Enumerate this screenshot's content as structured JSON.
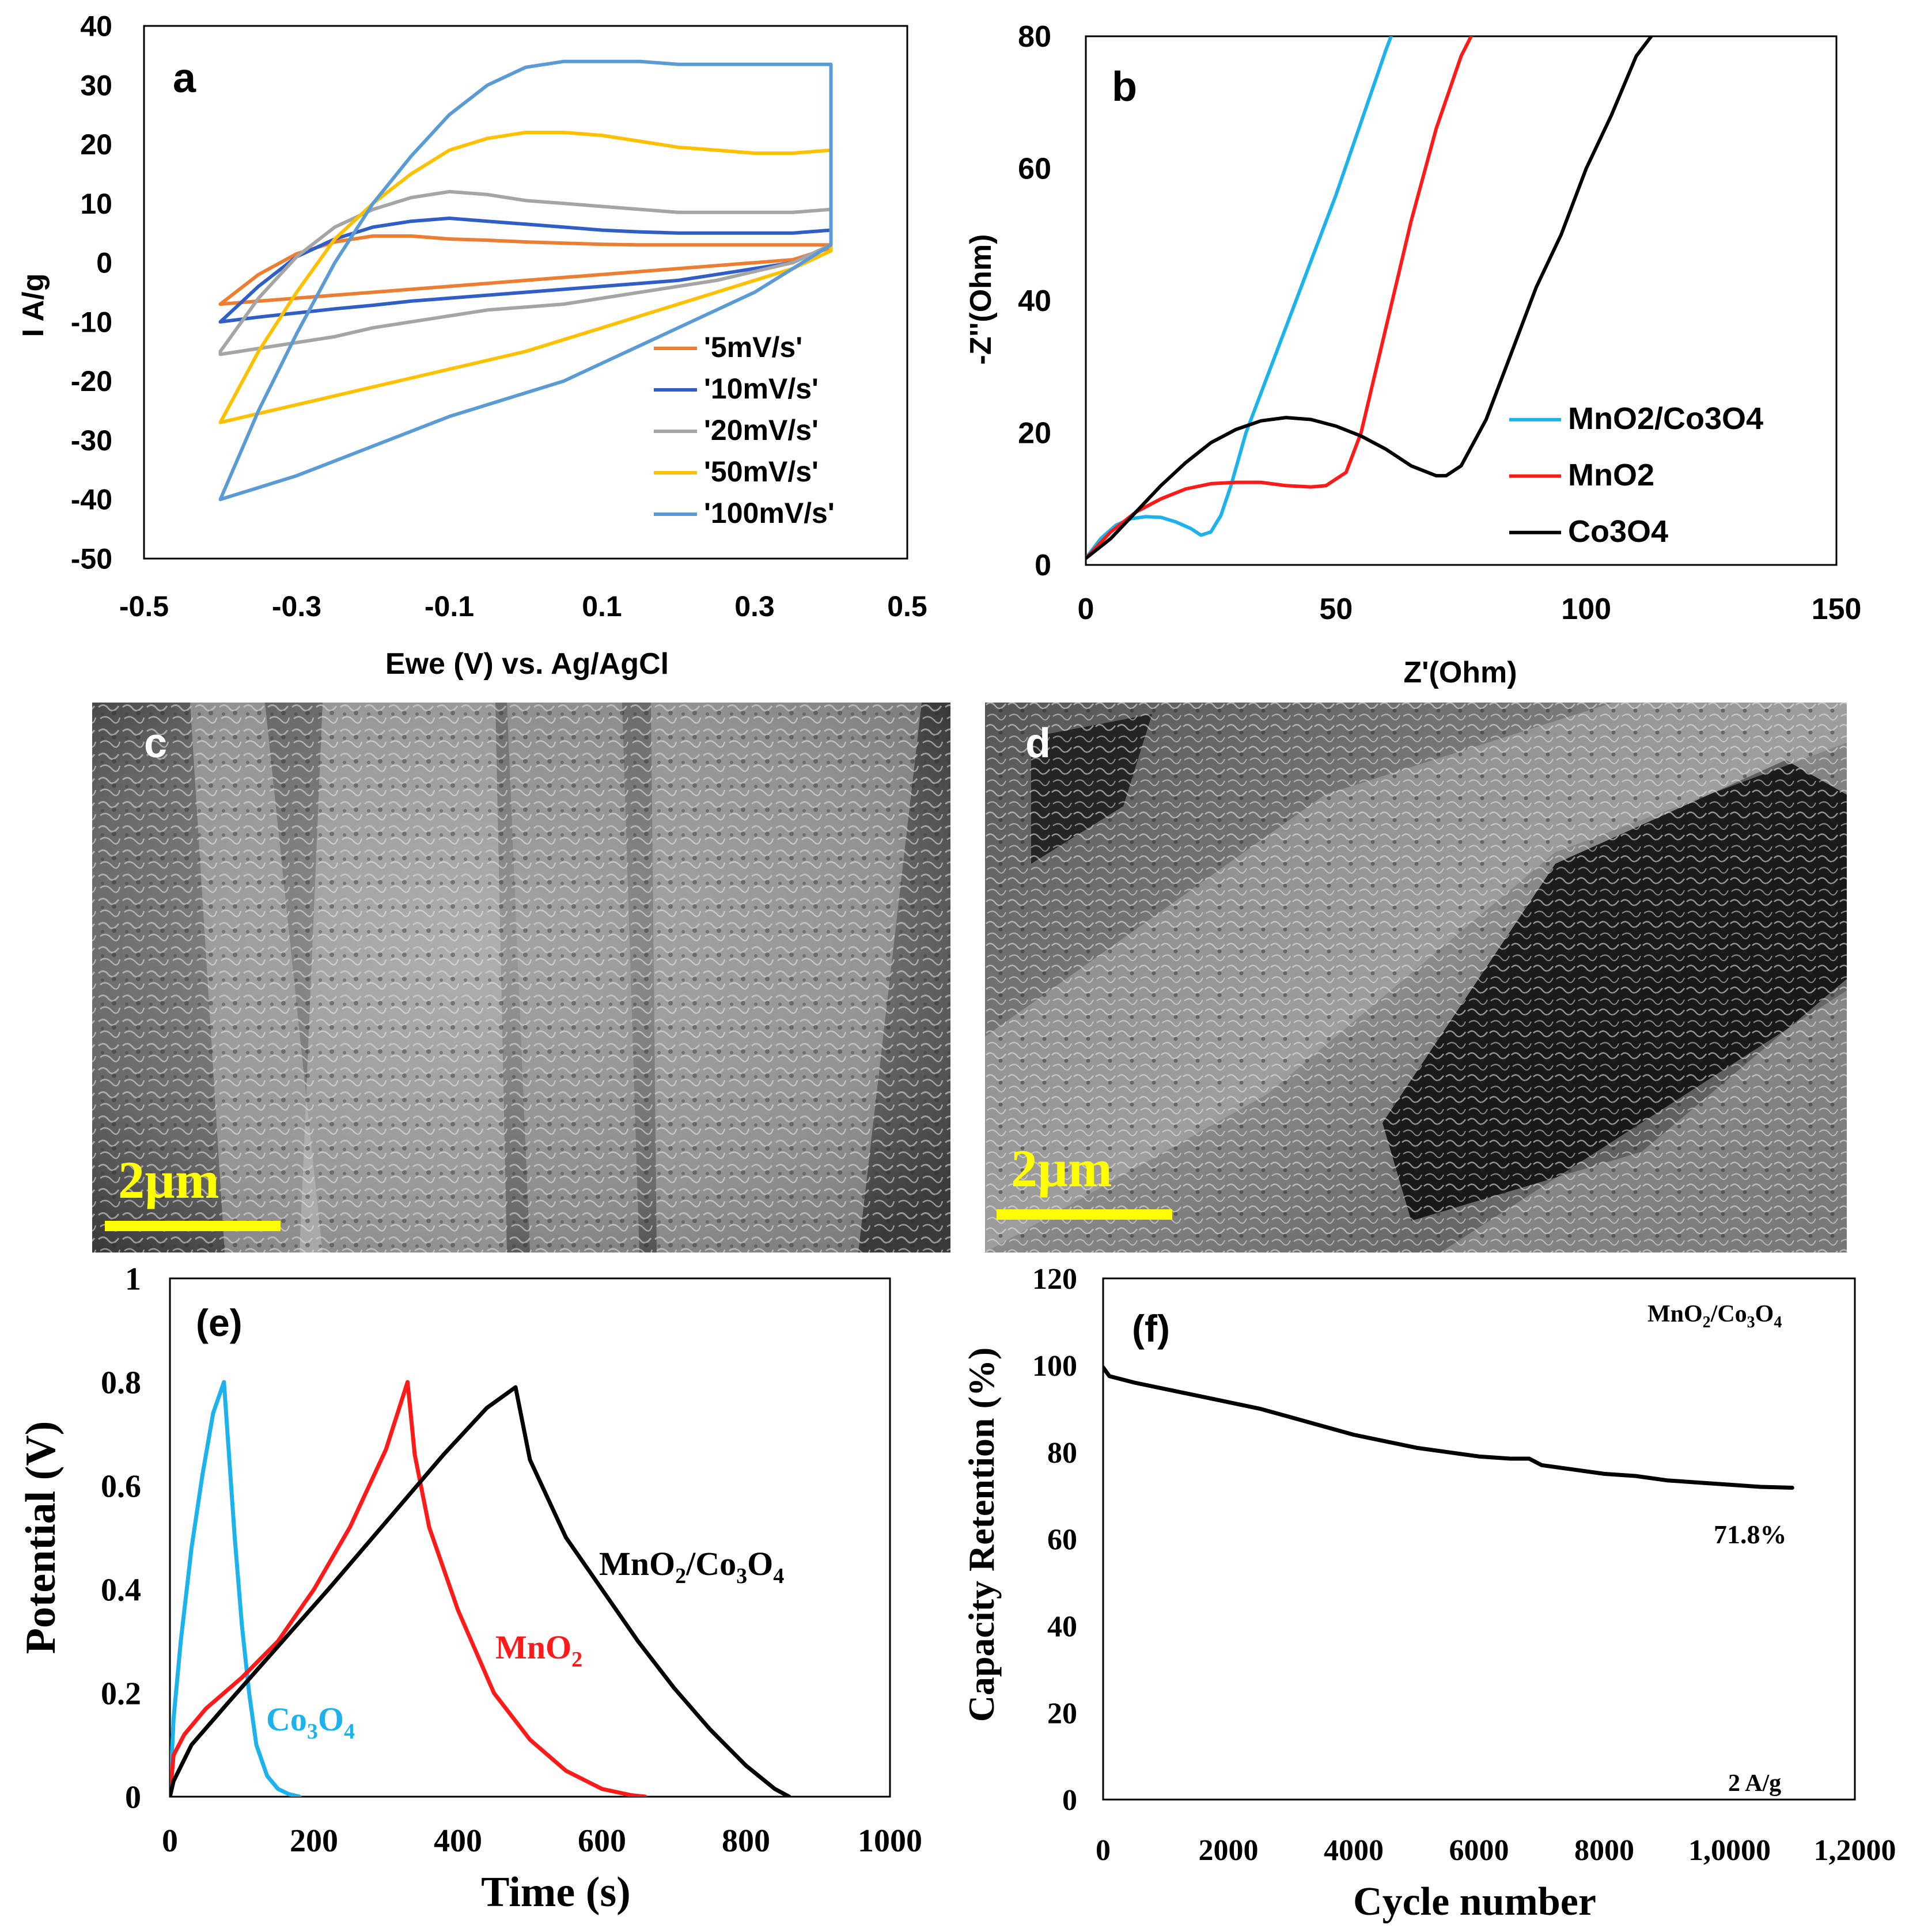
{
  "panel_labels": {
    "a": "a",
    "b": "b",
    "c": "c",
    "d": "d",
    "e": "(e)",
    "f": "(f)"
  },
  "sem": {
    "c": {
      "scale_label": "2µm"
    },
    "d": {
      "scale_label": "2µm"
    }
  },
  "colors": {
    "orange": "#ed7d31",
    "darkblue": "#2f5fc6",
    "gray": "#a5a5a5",
    "gold": "#ffc000",
    "lightblue": "#5b9bd5",
    "cyan": "#1cb2ec",
    "red": "#ff1a1a",
    "black": "#000000",
    "scale_yellow": "#ffff00"
  },
  "chart_data": [
    {
      "id": "a",
      "type": "line",
      "title": "",
      "xlabel": "Ewe (V) vs. Ag/AgCl",
      "ylabel": "I  A/g",
      "xlim": [
        -0.5,
        0.5
      ],
      "ylim": [
        -50,
        40
      ],
      "xticks": [
        -0.5,
        -0.3,
        -0.1,
        0.1,
        0.3,
        0.5
      ],
      "xtick_labels": [
        "-0.5",
        "-0.3",
        "-0.1",
        "0.1",
        "0.3",
        "0.5"
      ],
      "yticks": [
        40,
        30,
        20,
        10,
        0,
        -10,
        -20,
        -30,
        -40,
        -50
      ],
      "ytick_labels": [
        "40",
        "30",
        "20",
        "10",
        "0",
        "-10",
        "-20",
        "-30",
        "-40",
        "-50"
      ],
      "legend_position": "lower-right",
      "series": [
        {
          "name": "'5mV/s'",
          "color": "orange",
          "x": [
            -0.4,
            -0.35,
            -0.3,
            -0.25,
            -0.2,
            -0.15,
            -0.1,
            -0.05,
            0,
            0.05,
            0.1,
            0.15,
            0.2,
            0.25,
            0.3,
            0.35,
            0.4,
            0.4,
            0.35,
            0.3,
            0.25,
            0.2,
            0.15,
            0.1,
            0.05,
            0,
            -0.05,
            -0.1,
            -0.15,
            -0.2,
            -0.25,
            -0.3,
            -0.35,
            -0.4,
            -0.4
          ],
          "y": [
            -7,
            -2,
            1.5,
            3.5,
            4.5,
            4.5,
            4,
            3.8,
            3.5,
            3.3,
            3.1,
            3,
            3,
            3,
            3,
            3,
            3,
            2.5,
            0.5,
            0,
            -0.5,
            -1,
            -1.5,
            -2,
            -2.5,
            -3,
            -3.5,
            -4,
            -4.5,
            -5,
            -5.5,
            -6,
            -6.5,
            -7,
            -7
          ]
        },
        {
          "name": "'10mV/s'",
          "color": "darkblue",
          "x": [
            -0.4,
            -0.35,
            -0.3,
            -0.25,
            -0.2,
            -0.15,
            -0.1,
            -0.05,
            0,
            0.05,
            0.1,
            0.15,
            0.2,
            0.25,
            0.3,
            0.35,
            0.4,
            0.4,
            0.35,
            0.3,
            0.25,
            0.2,
            0.15,
            0.1,
            0.05,
            0,
            -0.05,
            -0.1,
            -0.15,
            -0.2,
            -0.25,
            -0.3,
            -0.35,
            -0.4,
            -0.4
          ],
          "y": [
            -10,
            -4,
            1,
            4,
            6,
            7,
            7.5,
            7,
            6.5,
            6,
            5.5,
            5.2,
            5,
            5,
            5,
            5,
            5.5,
            3,
            0,
            -1,
            -2,
            -3,
            -3.5,
            -4,
            -4.5,
            -5,
            -5.5,
            -6,
            -6.5,
            -7.2,
            -7.8,
            -8.5,
            -9.2,
            -10,
            -10
          ]
        },
        {
          "name": "'20mV/s'",
          "color": "gray",
          "x": [
            -0.4,
            -0.35,
            -0.3,
            -0.25,
            -0.2,
            -0.15,
            -0.1,
            -0.05,
            0,
            0.05,
            0.1,
            0.15,
            0.2,
            0.25,
            0.3,
            0.35,
            0.4,
            0.4,
            0.35,
            0.3,
            0.25,
            0.2,
            0.15,
            0.1,
            0.05,
            0,
            -0.05,
            -0.1,
            -0.15,
            -0.2,
            -0.25,
            -0.3,
            -0.35,
            -0.4,
            -0.4
          ],
          "y": [
            -15,
            -6,
            1,
            6,
            9,
            11,
            12,
            11.5,
            10.5,
            10,
            9.5,
            9,
            8.5,
            8.5,
            8.5,
            8.5,
            9,
            3,
            0,
            -1.5,
            -3,
            -4,
            -5,
            -6,
            -7,
            -7.5,
            -8,
            -9,
            -10,
            -11,
            -12.5,
            -13.5,
            -14.5,
            -15.5,
            -15
          ]
        },
        {
          "name": "'50mV/s'",
          "color": "gold",
          "x": [
            -0.4,
            -0.35,
            -0.3,
            -0.25,
            -0.2,
            -0.15,
            -0.1,
            -0.05,
            0,
            0.05,
            0.1,
            0.15,
            0.2,
            0.25,
            0.3,
            0.35,
            0.4,
            0.4,
            0.35,
            0.3,
            0.25,
            0.2,
            0.15,
            0.1,
            0.05,
            0,
            -0.05,
            -0.1,
            -0.15,
            -0.2,
            -0.25,
            -0.3,
            -0.35,
            -0.4,
            -0.4
          ],
          "y": [
            -27,
            -15,
            -5,
            4,
            10,
            15,
            19,
            21,
            22,
            22,
            21.5,
            20.5,
            19.5,
            19,
            18.5,
            18.5,
            19,
            2,
            -1,
            -3,
            -5,
            -7,
            -9,
            -11,
            -13,
            -15,
            -16.5,
            -18,
            -19.5,
            -21,
            -22.5,
            -24,
            -25.5,
            -27,
            -27
          ]
        },
        {
          "name": "'100mV/s'",
          "color": "lightblue",
          "x": [
            -0.4,
            -0.35,
            -0.3,
            -0.25,
            -0.2,
            -0.15,
            -0.1,
            -0.05,
            0,
            0.05,
            0.1,
            0.15,
            0.2,
            0.25,
            0.3,
            0.35,
            0.4,
            0.4,
            0.35,
            0.3,
            0.25,
            0.2,
            0.15,
            0.1,
            0.05,
            0,
            -0.05,
            -0.1,
            -0.15,
            -0.2,
            -0.25,
            -0.3,
            -0.35,
            -0.4,
            -0.4
          ],
          "y": [
            -40,
            -25,
            -12,
            0,
            10,
            18,
            25,
            30,
            33,
            34,
            34,
            34,
            33.5,
            33.5,
            33.5,
            33.5,
            33.5,
            3,
            -1,
            -5,
            -8,
            -11,
            -14,
            -17,
            -20,
            -22,
            -24,
            -26,
            -28.5,
            -31,
            -33.5,
            -36,
            -38,
            -40,
            -40
          ]
        }
      ]
    },
    {
      "id": "b",
      "type": "line",
      "title": "",
      "xlabel": "Z'(Ohm)",
      "ylabel": "-Z''(Ohm)",
      "xlim": [
        0,
        150
      ],
      "ylim": [
        0,
        80
      ],
      "xticks": [
        0,
        50,
        100,
        150
      ],
      "xtick_labels": [
        "0",
        "50",
        "100",
        "150"
      ],
      "yticks": [
        0,
        20,
        40,
        60,
        80
      ],
      "ytick_labels": [
        "0",
        "20",
        "40",
        "60",
        "80"
      ],
      "legend_position": "lower-right",
      "series": [
        {
          "name": "MnO2/Co3O4",
          "color": "cyan",
          "x": [
            0,
            3,
            6,
            9,
            12,
            15,
            18,
            21,
            23,
            25,
            27,
            29,
            32,
            36,
            40,
            45,
            50,
            55,
            60,
            61
          ],
          "y": [
            1,
            4,
            6,
            7,
            7.3,
            7.2,
            6.5,
            5.5,
            4.5,
            5,
            7.5,
            12,
            20,
            28,
            36,
            46,
            56,
            67,
            78,
            80
          ]
        },
        {
          "name": "MnO2",
          "color": "red",
          "x": [
            0,
            5,
            10,
            15,
            20,
            25,
            30,
            35,
            40,
            45,
            48,
            52,
            55,
            60,
            65,
            70,
            75,
            77
          ],
          "y": [
            1,
            5,
            8,
            10,
            11.5,
            12.3,
            12.5,
            12.5,
            12,
            11.8,
            12,
            14,
            20,
            36,
            52,
            66,
            77,
            80
          ]
        },
        {
          "name": "Co3O4",
          "color": "black",
          "x": [
            0,
            5,
            10,
            15,
            20,
            25,
            30,
            35,
            40,
            45,
            50,
            55,
            60,
            65,
            70,
            72,
            75,
            80,
            85,
            90,
            95,
            100,
            105,
            110,
            113
          ],
          "y": [
            1,
            4,
            8,
            12,
            15.5,
            18.5,
            20.5,
            21.8,
            22.3,
            22,
            21,
            19.5,
            17.5,
            15,
            13.5,
            13.5,
            15,
            22,
            32,
            42,
            50,
            60,
            68,
            77,
            80
          ]
        }
      ]
    },
    {
      "id": "e",
      "type": "line",
      "title": "",
      "xlabel": "Time (s)",
      "ylabel": "Potential (V)",
      "xlim": [
        0,
        1000
      ],
      "ylim": [
        0,
        1
      ],
      "xticks": [
        0,
        200,
        400,
        600,
        800,
        1000
      ],
      "xtick_labels": [
        "0",
        "200",
        "400",
        "600",
        "800",
        "1000"
      ],
      "yticks": [
        0,
        0.2,
        0.4,
        0.6,
        0.8,
        1
      ],
      "ytick_labels": [
        "0",
        "0.2",
        "0.4",
        "0.6",
        "0.8",
        "1"
      ],
      "annotations": [
        "MnO2/Co3O4",
        "MnO2",
        "Co3O4"
      ],
      "series": [
        {
          "name": "Co3O4",
          "color": "cyan",
          "x": [
            0,
            5,
            15,
            30,
            45,
            60,
            75,
            80,
            90,
            100,
            110,
            120,
            135,
            150,
            165,
            180
          ],
          "y": [
            0,
            0.15,
            0.3,
            0.48,
            0.62,
            0.74,
            0.8,
            0.7,
            0.5,
            0.33,
            0.2,
            0.1,
            0.04,
            0.015,
            0.005,
            0
          ]
        },
        {
          "name": "MnO2",
          "color": "red",
          "x": [
            0,
            5,
            20,
            50,
            100,
            150,
            200,
            250,
            300,
            330,
            340,
            360,
            400,
            450,
            500,
            550,
            600,
            640,
            660
          ],
          "y": [
            0,
            0.08,
            0.12,
            0.17,
            0.23,
            0.3,
            0.4,
            0.52,
            0.67,
            0.8,
            0.66,
            0.52,
            0.36,
            0.2,
            0.11,
            0.05,
            0.015,
            0.003,
            0
          ]
        },
        {
          "name": "MnO2/Co3O4",
          "color": "black",
          "x": [
            0,
            5,
            30,
            80,
            150,
            220,
            300,
            380,
            440,
            480,
            500,
            550,
            600,
            650,
            700,
            750,
            800,
            840,
            860
          ],
          "y": [
            0,
            0.03,
            0.1,
            0.18,
            0.29,
            0.4,
            0.53,
            0.66,
            0.75,
            0.79,
            0.65,
            0.5,
            0.4,
            0.3,
            0.21,
            0.13,
            0.06,
            0.015,
            0
          ]
        }
      ]
    },
    {
      "id": "f",
      "type": "line",
      "title": "",
      "xlabel": "Cycle number",
      "ylabel": "Capacity Retention (%)",
      "xlim": [
        0,
        12000
      ],
      "ylim": [
        0,
        120
      ],
      "xticks": [
        0,
        2000,
        4000,
        6000,
        8000,
        10000,
        12000
      ],
      "xtick_labels": [
        "0",
        "2000",
        "4000",
        "6000",
        "8000",
        "1,0000",
        "1,2000"
      ],
      "yticks": [
        0,
        20,
        40,
        60,
        80,
        100,
        120
      ],
      "ytick_labels": [
        "0",
        "20",
        "40",
        "60",
        "80",
        "100",
        "120"
      ],
      "annotations": [
        "MnO2/Co3O4",
        "71.8%",
        "2 A/g"
      ],
      "series": [
        {
          "name": "MnO2/Co3O4",
          "color": "black",
          "x": [
            0,
            100,
            500,
            1000,
            1500,
            2000,
            2500,
            3000,
            3500,
            4000,
            4500,
            5000,
            5500,
            6000,
            6500,
            6800,
            7000,
            7500,
            8000,
            8500,
            9000,
            9500,
            10000,
            10500,
            11000
          ],
          "y": [
            99.5,
            97.5,
            96,
            94.5,
            93,
            91.5,
            90,
            88,
            86,
            84,
            82.5,
            81,
            80,
            79,
            78.5,
            78.5,
            77,
            76,
            75,
            74.5,
            73.5,
            73,
            72.5,
            72,
            71.8
          ]
        }
      ]
    }
  ]
}
